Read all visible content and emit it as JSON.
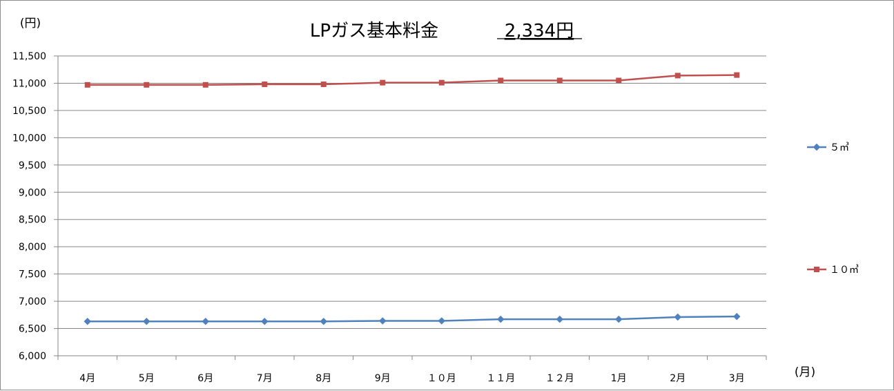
{
  "chart_data": {
    "type": "line",
    "title": "LPガス基本料金",
    "title_value": "2,334円",
    "ylabel": "(円)",
    "xlabel": "(月)",
    "ylim": [
      6000,
      11500
    ],
    "yticks": [
      6000,
      6500,
      7000,
      7500,
      8000,
      8500,
      9000,
      9500,
      10000,
      10500,
      11000,
      11500
    ],
    "ytick_labels": [
      "6,000",
      "6,500",
      "7,000",
      "7,500",
      "8,000",
      "8,500",
      "9,000",
      "9,500",
      "10,000",
      "10,500",
      "11,000",
      "11,500"
    ],
    "categories": [
      "4月",
      "5月",
      "6月",
      "7月",
      "8月",
      "9月",
      "１０月",
      "１１月",
      "１２月",
      "1月",
      "2月",
      "3月"
    ],
    "grid": true,
    "legend_position": "right",
    "series": [
      {
        "name": "５㎥",
        "color": "#4f81bd",
        "marker": "diamond",
        "values": [
          6630,
          6630,
          6630,
          6630,
          6630,
          6640,
          6640,
          6670,
          6670,
          6670,
          6710,
          6720
        ]
      },
      {
        "name": "１０㎥",
        "color": "#c0504d",
        "marker": "square",
        "values": [
          10970,
          10970,
          10970,
          10980,
          10980,
          11010,
          11010,
          11050,
          11050,
          11050,
          11140,
          11150
        ]
      }
    ]
  }
}
